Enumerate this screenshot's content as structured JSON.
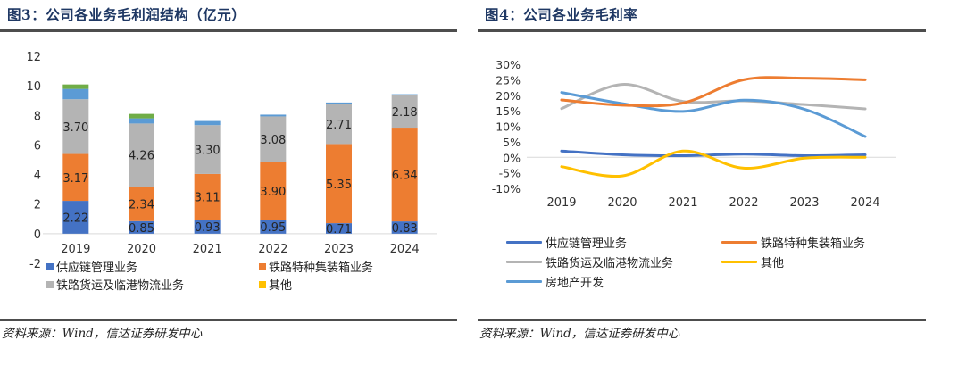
{
  "left_panel": {
    "title": "图3：公司各业务毛利润结构（亿元）",
    "source": "资料来源：Wind，信达证券研发中心"
  },
  "right_panel": {
    "title": "图4：公司各业务毛利率",
    "source": "资料来源：Wind，信达证券研发中心"
  },
  "chart_data": [
    {
      "type": "bar",
      "stacked": true,
      "title": "公司各业务毛利润结构（亿元）",
      "xlabel": "",
      "ylabel": "",
      "unit": "亿元",
      "categories": [
        "2019",
        "2020",
        "2021",
        "2022",
        "2023",
        "2024"
      ],
      "ylim": [
        -2,
        12
      ],
      "yticks": [
        -2,
        0,
        2,
        4,
        6,
        8,
        10,
        12
      ],
      "ytick_labels": [
        "-2",
        "0",
        "2",
        "4",
        "6",
        "8",
        "10",
        "12"
      ],
      "grid": false,
      "legend_position": "bottom",
      "series": [
        {
          "name": "供应链管理业务",
          "color": "#4472c4",
          "in_legend": true,
          "show_labels": true,
          "values": [
            2.22,
            0.85,
            0.93,
            0.95,
            0.71,
            0.83
          ],
          "labels": [
            "2.22",
            "0.85",
            "0.93",
            "0.95",
            "0.71",
            "0.83"
          ]
        },
        {
          "name": "铁路特种集装箱业务",
          "color": "#ed7d31",
          "in_legend": true,
          "show_labels": true,
          "values": [
            3.17,
            2.34,
            3.11,
            3.9,
            5.35,
            6.34
          ],
          "labels": [
            "3.17",
            "2.34",
            "3.11",
            "3.90",
            "5.35",
            "6.34"
          ]
        },
        {
          "name": "铁路货运及临港物流业务",
          "color": "#b4b4b4",
          "in_legend": true,
          "show_labels": true,
          "values": [
            3.7,
            4.26,
            3.3,
            3.08,
            2.71,
            2.18
          ],
          "labels": [
            "3.70",
            "4.26",
            "3.30",
            "3.08",
            "2.71",
            "2.18"
          ]
        },
        {
          "name": "其他",
          "color": "#ffc000",
          "in_legend": true,
          "show_labels": false,
          "values": [
            0,
            0,
            0,
            0,
            0,
            0
          ]
        },
        {
          "name": "房地产开发",
          "color": "#5b9bd5",
          "in_legend": false,
          "show_labels": false,
          "values": [
            0.7,
            0.35,
            0.28,
            0.12,
            0.1,
            0.08
          ]
        },
        {
          "name": "",
          "color": "#70ad47",
          "in_legend": false,
          "show_labels": false,
          "values": [
            0.3,
            0.3,
            0,
            0,
            0,
            0
          ]
        }
      ]
    },
    {
      "type": "line",
      "smooth": true,
      "title": "公司各业务毛利率",
      "xlabel": "",
      "ylabel": "",
      "x": [
        "2019",
        "2020",
        "2021",
        "2022",
        "2023",
        "2024"
      ],
      "ylim": [
        -10,
        30
      ],
      "yticks": [
        -10,
        -5,
        0,
        5,
        10,
        15,
        20,
        25,
        30
      ],
      "ytick_labels": [
        "-10%",
        "-5%",
        "0%",
        "5%",
        "10%",
        "15%",
        "20%",
        "25%",
        "30%"
      ],
      "grid": false,
      "legend_position": "bottom",
      "series": [
        {
          "name": "供应链管理业务",
          "color": "#4472c4",
          "values": [
            2.0,
            0.8,
            0.5,
            1.0,
            0.5,
            0.8
          ]
        },
        {
          "name": "铁路特种集装箱业务",
          "color": "#ed7d31",
          "values": [
            18.5,
            16.8,
            17.5,
            25.0,
            25.5,
            25.0
          ]
        },
        {
          "name": "铁路货运及临港物流业务",
          "color": "#b4b4b4",
          "values": [
            15.7,
            23.5,
            18.0,
            18.2,
            17.0,
            15.6
          ]
        },
        {
          "name": "其他",
          "color": "#ffc000",
          "values": [
            -3.0,
            -6.0,
            2.0,
            -3.5,
            -0.3,
            0.0
          ]
        },
        {
          "name": "房地产开发",
          "color": "#5b9bd5",
          "values": [
            20.9,
            17.3,
            14.8,
            18.4,
            15.5,
            6.7
          ]
        }
      ]
    }
  ]
}
